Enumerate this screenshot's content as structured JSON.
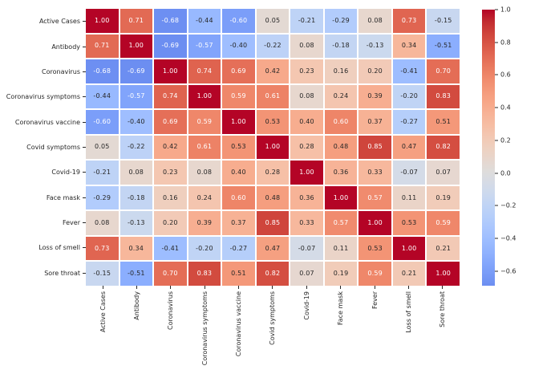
{
  "chart_data": {
    "type": "heatmap",
    "title": "",
    "xlabel": "",
    "ylabel": "",
    "categories": [
      "Active Cases",
      "Antibody",
      "Coronavirus",
      "Coronavirus symptoms",
      "Coronavirus vaccine",
      "Covid symptoms",
      "Covid-19",
      "Face mask",
      "Fever",
      "Loss of smell",
      "Sore throat"
    ],
    "matrix": [
      [
        1.0,
        0.71,
        -0.68,
        -0.44,
        -0.6,
        0.05,
        -0.21,
        -0.29,
        0.08,
        0.73,
        -0.15
      ],
      [
        0.71,
        1.0,
        -0.69,
        -0.57,
        -0.4,
        -0.22,
        0.08,
        -0.18,
        -0.13,
        0.34,
        -0.51
      ],
      [
        -0.68,
        -0.69,
        1.0,
        0.74,
        0.69,
        0.42,
        0.23,
        0.16,
        0.2,
        -0.41,
        0.7
      ],
      [
        -0.44,
        -0.57,
        0.74,
        1.0,
        0.59,
        0.61,
        0.08,
        0.24,
        0.39,
        -0.2,
        0.83
      ],
      [
        -0.6,
        -0.4,
        0.69,
        0.59,
        1.0,
        0.53,
        0.4,
        0.6,
        0.37,
        -0.27,
        0.51
      ],
      [
        0.05,
        -0.22,
        0.42,
        0.61,
        0.53,
        1.0,
        0.28,
        0.48,
        0.85,
        0.47,
        0.82
      ],
      [
        -0.21,
        0.08,
        0.23,
        0.08,
        0.4,
        0.28,
        1.0,
        0.36,
        0.33,
        -0.07,
        0.07
      ],
      [
        -0.29,
        -0.18,
        0.16,
        0.24,
        0.6,
        0.48,
        0.36,
        1.0,
        0.57,
        0.11,
        0.19
      ],
      [
        0.08,
        -0.13,
        0.2,
        0.39,
        0.37,
        0.85,
        0.33,
        0.57,
        1.0,
        0.53,
        0.59
      ],
      [
        0.73,
        0.34,
        -0.41,
        -0.2,
        -0.27,
        0.47,
        -0.07,
        0.11,
        0.53,
        1.0,
        0.21
      ],
      [
        -0.15,
        -0.51,
        0.7,
        0.83,
        0.51,
        0.82,
        0.07,
        0.19,
        0.59,
        0.21,
        1.0
      ]
    ],
    "annotation_decimals": 2,
    "colormap": "coolwarm",
    "center": 0,
    "vmin": -0.69,
    "vmax": 1.0,
    "colormap_stops": [
      "#3b4cc0",
      "#445acc",
      "#4d68d7",
      "#5775e1",
      "#6282ea",
      "#6c8ef1",
      "#779af7",
      "#82a5fb",
      "#8db0fe",
      "#98b9ff",
      "#a3c2ff",
      "#aec9fd",
      "#b8d0f9",
      "#c2d5f4",
      "#ccd9ee",
      "#d5dbe6",
      "#dddddd",
      "#e5d8d1",
      "#ecd3c5",
      "#f1ccb9",
      "#f5c4ad",
      "#f7bba0",
      "#f7b194",
      "#f7a687",
      "#f49a7b",
      "#f18d6f",
      "#ec7f63",
      "#e57058",
      "#de604d",
      "#d55042",
      "#cb3e38",
      "#c0282f",
      "#b40426"
    ],
    "colorbar": {
      "position": "right",
      "tick_values": [
        1.0,
        0.8,
        0.6,
        0.4,
        0.2,
        0.0,
        -0.2,
        -0.4,
        -0.6
      ],
      "tick_labels": [
        "1.0",
        "0.8",
        "0.6",
        "0.4",
        "0.2",
        "0.0",
        "−0.2",
        "−0.4",
        "−0.6"
      ]
    },
    "colors": {
      "background": "#ffffff",
      "grid_line": "#ffffff",
      "tick_label": "#262626",
      "annotation_dark": "#262626",
      "annotation_light": "#ffffff"
    },
    "grid": false,
    "legend_position": "colorbar-right"
  }
}
